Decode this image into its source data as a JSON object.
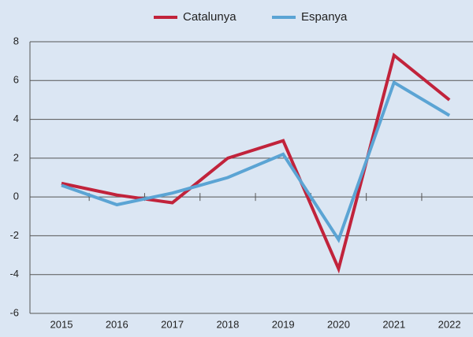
{
  "chart_data": {
    "type": "line",
    "categories": [
      "2015",
      "2016",
      "2017",
      "2018",
      "2019",
      "2020",
      "2021",
      "2022"
    ],
    "series": [
      {
        "name": "Catalunya",
        "color": "#c1233b",
        "values": [
          0.7,
          0.1,
          -0.3,
          2.0,
          2.9,
          -3.7,
          7.3,
          5.0
        ]
      },
      {
        "name": "Espanya",
        "color": "#5ba4d4",
        "values": [
          0.6,
          -0.4,
          0.2,
          1.0,
          2.2,
          -2.2,
          5.9,
          4.2
        ]
      }
    ],
    "ylim": [
      -6,
      8
    ],
    "yticks": [
      -6,
      -4,
      -2,
      0,
      2,
      4,
      6,
      8
    ],
    "grid": true,
    "legend": "top"
  }
}
